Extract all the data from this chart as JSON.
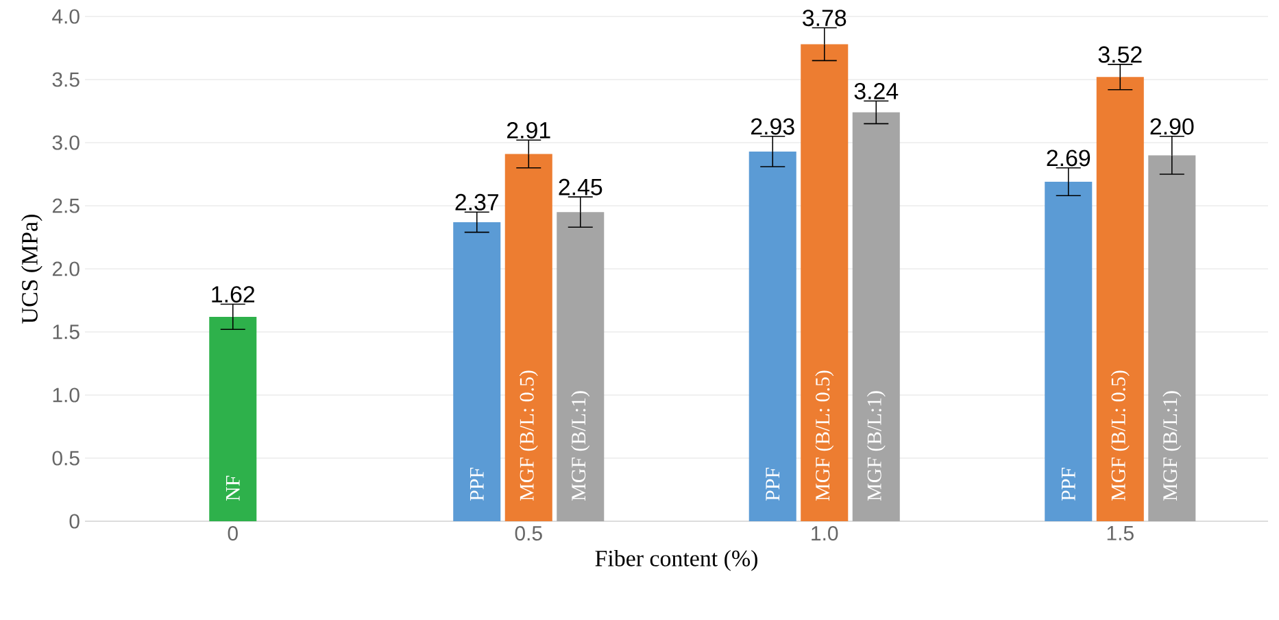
{
  "chart_data": {
    "type": "bar",
    "xlabel": "Fiber content (%)",
    "ylabel": "UCS (MPa)",
    "categories": [
      "0",
      "0.5",
      "1.0",
      "1.5"
    ],
    "series": [
      {
        "name": "NF",
        "color": "#2eb14b",
        "values": [
          1.62,
          null,
          null,
          null
        ],
        "errors": [
          0.1,
          null,
          null,
          null
        ],
        "value_labels": [
          "1.62",
          null,
          null,
          null
        ]
      },
      {
        "name": "PPF",
        "color": "#5b9bd5",
        "values": [
          null,
          2.37,
          2.93,
          2.69
        ],
        "errors": [
          null,
          0.08,
          0.12,
          0.11
        ],
        "value_labels": [
          null,
          "2.37",
          "2.93",
          "2.69"
        ]
      },
      {
        "name": "MGF (B/L: 0.5)",
        "color": "#ed7d31",
        "values": [
          null,
          2.91,
          3.78,
          3.52
        ],
        "errors": [
          null,
          0.11,
          0.13,
          0.1
        ],
        "value_labels": [
          null,
          "2.91",
          "3.78",
          "3.52"
        ]
      },
      {
        "name": "MGF (B/L:1)",
        "color": "#a5a5a5",
        "values": [
          null,
          2.45,
          3.24,
          2.9
        ],
        "errors": [
          null,
          0.12,
          0.09,
          0.15
        ],
        "value_labels": [
          null,
          "2.45",
          "3.24",
          "2.90"
        ]
      }
    ],
    "ylim": [
      0,
      4
    ],
    "yticks": [
      0,
      0.5,
      {
        "value": 1,
        "label": "1.0"
      },
      1.5,
      {
        "value": 2,
        "label": "2.0"
      },
      2.5,
      {
        "value": 3,
        "label": "3.0"
      },
      3.5,
      {
        "value": 4,
        "label": "4.0"
      }
    ],
    "grid": "y"
  }
}
